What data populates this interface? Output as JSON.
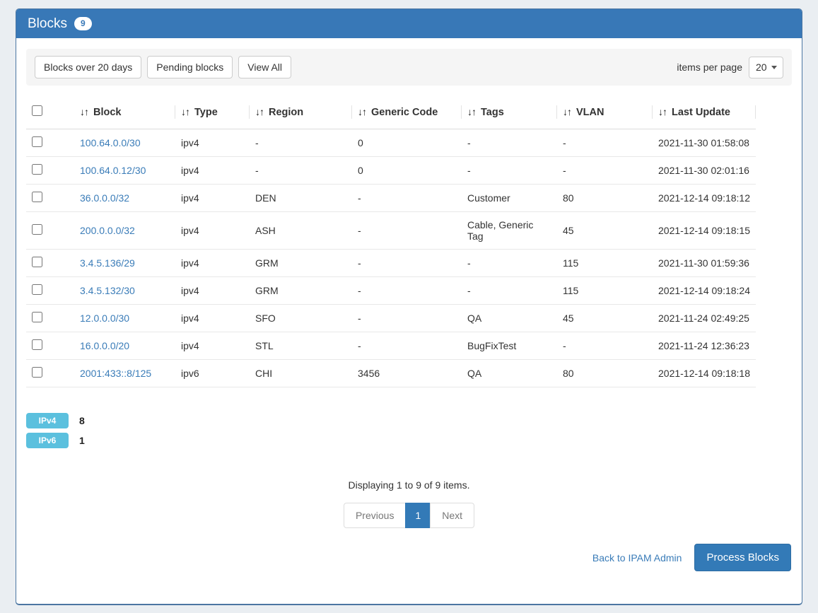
{
  "header": {
    "title": "Blocks",
    "count": "9"
  },
  "toolbar": {
    "filters": [
      "Blocks over 20 days",
      "Pending blocks",
      "View All"
    ],
    "items_per_page_label": "items per page",
    "items_per_page_value": "20"
  },
  "table": {
    "sort_glyph": "↓↑",
    "columns": [
      "Block",
      "Type",
      "Region",
      "Generic Code",
      "Tags",
      "VLAN",
      "Last Update"
    ],
    "rows": [
      [
        "100.64.0.0/30",
        "ipv4",
        "-",
        "0",
        "-",
        "-",
        "2021-11-30 01:58:08"
      ],
      [
        "100.64.0.12/30",
        "ipv4",
        "-",
        "0",
        "-",
        "-",
        "2021-11-30 02:01:16"
      ],
      [
        "36.0.0.0/32",
        "ipv4",
        "DEN",
        "-",
        "Customer",
        "80",
        "2021-12-14 09:18:12"
      ],
      [
        "200.0.0.0/32",
        "ipv4",
        "ASH",
        "-",
        "Cable, Generic Tag",
        "45",
        "2021-12-14 09:18:15"
      ],
      [
        "3.4.5.136/29",
        "ipv4",
        "GRM",
        "-",
        "-",
        "115",
        "2021-11-30 01:59:36"
      ],
      [
        "3.4.5.132/30",
        "ipv4",
        "GRM",
        "-",
        "-",
        "115",
        "2021-12-14 09:18:24"
      ],
      [
        "12.0.0.0/30",
        "ipv4",
        "SFO",
        "-",
        "QA",
        "45",
        "2021-11-24 02:49:25"
      ],
      [
        "16.0.0.0/20",
        "ipv4",
        "STL",
        "-",
        "BugFixTest",
        "-",
        "2021-11-24 12:36:23"
      ],
      [
        "2001:433::8/125",
        "ipv6",
        "CHI",
        "3456",
        "QA",
        "80",
        "2021-12-14 09:18:18"
      ]
    ]
  },
  "summary": [
    {
      "label": "IPv4",
      "count": "8"
    },
    {
      "label": "IPv6",
      "count": "1"
    }
  ],
  "status": "Displaying 1 to 9 of 9 items.",
  "pagination": {
    "previous": "Previous",
    "page": "1",
    "next": "Next"
  },
  "footer": {
    "back_link": "Back to IPAM Admin",
    "process_button": "Process Blocks"
  },
  "colors": {
    "header_bg": "#3878b7",
    "accent_blue": "#337ab7",
    "info_badge": "#5bc0de",
    "page_bg": "#eaeef2",
    "link": "#3a7cb8"
  }
}
